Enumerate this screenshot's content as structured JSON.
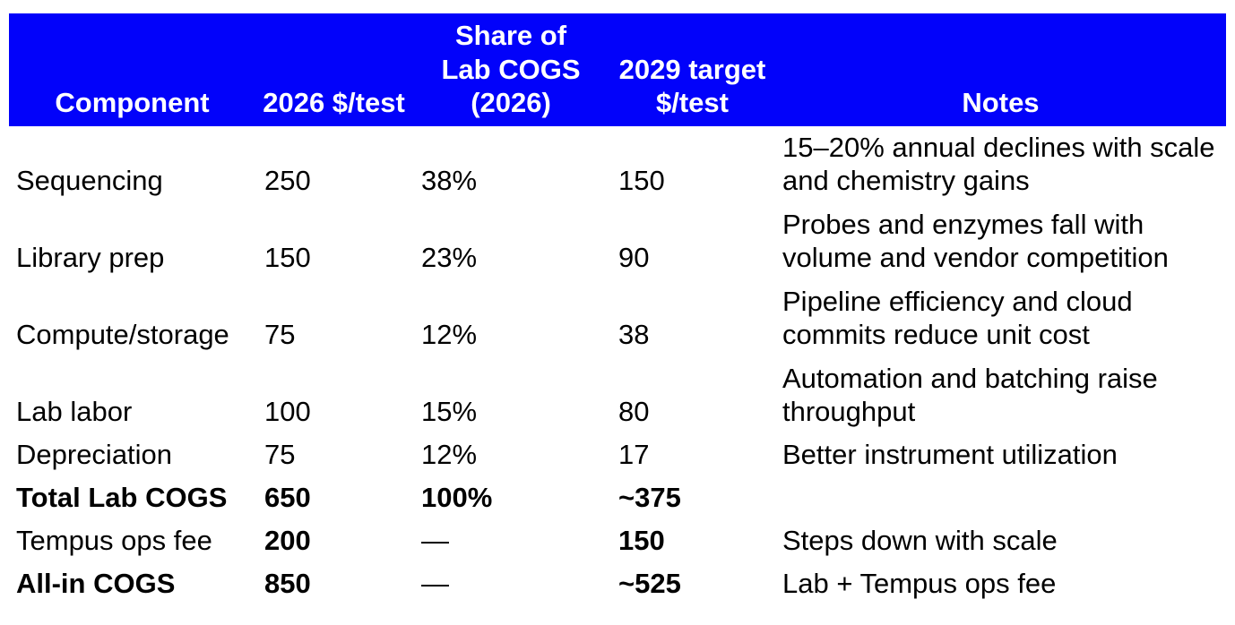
{
  "colors": {
    "header_bg": "#0202fa",
    "header_text": "#ffffff",
    "body_text": "#000000"
  },
  "table": {
    "header": {
      "component": "Component",
      "cost_2026": "2026 $/test",
      "share": "Share of\nLab COGS\n(2026)",
      "target_2029": "2029 target\n$/test",
      "notes": "Notes"
    },
    "rows": [
      {
        "component": "Sequencing",
        "cost_2026": "250",
        "share": "38%",
        "target_2029": "150",
        "notes": "15–20% annual declines with scale and chemistry gains"
      },
      {
        "component": "Library prep",
        "cost_2026": "150",
        "share": "23%",
        "target_2029": "90",
        "notes": "Probes and enzymes fall with volume and vendor competition"
      },
      {
        "component": "Compute/storage",
        "cost_2026": "75",
        "share": "12%",
        "target_2029": "38",
        "notes": "Pipeline efficiency and cloud commits reduce unit cost"
      },
      {
        "component": "Lab labor",
        "cost_2026": "100",
        "share": "15%",
        "target_2029": "80",
        "notes": "Automation and batching raise throughput"
      },
      {
        "component": "Depreciation",
        "cost_2026": "75",
        "share": "12%",
        "target_2029": "17",
        "notes": "Better instrument utilization"
      },
      {
        "component": "Total Lab COGS",
        "cost_2026": "650",
        "share": "100%",
        "target_2029": "~375",
        "notes": ""
      },
      {
        "component": "Tempus ops fee",
        "cost_2026": "200",
        "share": "—",
        "target_2029": "150",
        "notes": "Steps down with scale"
      },
      {
        "component": "All-in COGS",
        "cost_2026": "850",
        "share": "—",
        "target_2029": "~525",
        "notes": "Lab + Tempus ops fee"
      }
    ]
  }
}
